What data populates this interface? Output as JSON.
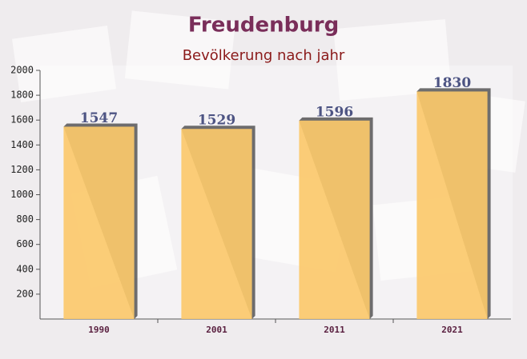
{
  "chart_data": {
    "type": "bar",
    "title": "Freudenburg",
    "subtitle": "Bevölkerung nach jahr",
    "categories": [
      "1990",
      "2001",
      "2011",
      "2021"
    ],
    "values": [
      1547,
      1529,
      1596,
      1830
    ],
    "color": "#fbc96b",
    "ylim": [
      0,
      2000
    ],
    "yticks": [
      200,
      400,
      600,
      800,
      1000,
      1200,
      1400,
      1600,
      1800,
      2000
    ]
  }
}
